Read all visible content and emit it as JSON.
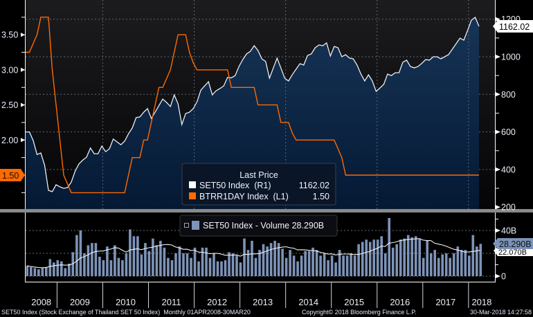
{
  "chart_data": [
    {
      "type": "line",
      "panel": "price",
      "x_start": "2008-04",
      "x_end": "2018-03",
      "frequency": "monthly",
      "legend_title": "Last Price",
      "legend_placement": "bottom-center",
      "grid": true,
      "series": [
        {
          "name": "SET50 Index  (R1)",
          "axis": "right",
          "style": "area",
          "color": "#ffffff",
          "fill": "#0d2a4d",
          "last_value_label": "1162.02",
          "values": [
            600,
            600,
            554,
            480,
            488,
            422,
            289,
            282,
            319,
            308,
            300,
            304,
            333,
            392,
            430,
            450,
            466,
            514,
            484,
            484,
            525,
            495,
            510,
            562,
            547,
            532,
            551,
            590,
            621,
            676,
            680,
            705,
            724,
            672,
            705,
            740,
            775,
            757,
            735,
            797,
            750,
            639,
            698,
            705,
            724,
            761,
            823,
            845,
            867,
            797,
            819,
            831,
            845,
            890,
            888,
            900,
            948,
            985,
            1015,
            1029,
            1059,
            1033,
            989,
            975,
            886,
            940,
            993,
            940,
            886,
            871,
            905,
            934,
            963,
            956,
            1007,
            1015,
            1048,
            1063,
            1059,
            1074,
            1004,
            1055,
            1048,
            1000,
            1011,
            993,
            989,
            956,
            908,
            871,
            904,
            871,
            816,
            834,
            853,
            908,
            900,
            915,
            915,
            971,
            982,
            948,
            941,
            948,
            965,
            985,
            982,
            1000,
            1000,
            989,
            1000,
            1011,
            1040,
            1070,
            1099,
            1088,
            1140,
            1195,
            1210,
            1162.02
          ]
        },
        {
          "name": "BTRR1DAY Index  (L1)",
          "axis": "left",
          "style": "line",
          "color": "#ff6a00",
          "last_value_label": "1.50",
          "values": [
            3.25,
            3.25,
            3.375,
            3.5,
            3.75,
            3.75,
            3.75,
            3.0,
            2.5,
            2.0,
            1.5,
            1.375,
            1.25,
            1.25,
            1.25,
            1.25,
            1.25,
            1.25,
            1.25,
            1.25,
            1.25,
            1.25,
            1.25,
            1.25,
            1.25,
            1.25,
            1.25,
            1.5,
            1.75,
            1.75,
            1.75,
            2.0,
            2.0,
            2.25,
            2.5,
            2.75,
            2.75,
            2.875,
            3.0,
            3.25,
            3.5,
            3.5,
            3.5,
            3.25,
            3.1,
            3.0,
            3.0,
            3.0,
            3.0,
            3.0,
            3.0,
            3.0,
            3.0,
            3.0,
            2.75,
            2.75,
            2.75,
            2.75,
            2.75,
            2.75,
            2.75,
            2.5,
            2.5,
            2.5,
            2.5,
            2.5,
            2.5,
            2.25,
            2.25,
            2.25,
            2.1,
            2.0,
            2.0,
            2.0,
            2.0,
            2.0,
            2.0,
            2.0,
            2.0,
            2.0,
            2.0,
            2.0,
            1.875,
            1.75,
            1.5,
            1.5,
            1.5,
            1.5,
            1.5,
            1.5,
            1.5,
            1.5,
            1.5,
            1.5,
            1.5,
            1.5,
            1.5,
            1.5,
            1.5,
            1.5,
            1.5,
            1.5,
            1.5,
            1.5,
            1.5,
            1.5,
            1.5,
            1.5,
            1.5,
            1.5,
            1.5,
            1.5,
            1.5,
            1.5,
            1.5,
            1.5,
            1.5,
            1.5,
            1.5,
            1.5
          ]
        }
      ],
      "left_axis": {
        "ylim": [
          1.0,
          4.0
        ],
        "tick_labels": [
          "3.50",
          "3.00",
          "2.50",
          "2.00"
        ],
        "ticks": [
          3.5,
          3.0,
          2.5,
          2.0
        ]
      },
      "right_axis": {
        "ylim": [
          190,
          1300
        ],
        "tick_labels": [
          "1200",
          "1000",
          "800",
          "600",
          "400",
          "200"
        ],
        "ticks": [
          1200,
          1000,
          800,
          600,
          400,
          200
        ]
      }
    },
    {
      "type": "bar",
      "panel": "volume",
      "legend_placement": "top-center",
      "grid": true,
      "series": [
        {
          "name": "SET50 Index - Volume",
          "legend_value": "28.290B",
          "color": "#7d93b8",
          "unit": "B",
          "values": [
            9,
            8,
            7,
            6,
            7,
            8,
            15,
            12,
            14,
            13,
            7,
            11,
            21,
            36,
            40,
            20,
            27,
            29,
            29,
            17,
            14,
            26,
            14,
            27,
            16,
            14,
            20,
            41,
            35,
            35,
            19,
            29,
            22,
            33,
            27,
            31,
            25,
            16,
            14,
            20,
            26,
            20,
            20,
            16,
            25,
            13,
            25,
            25,
            16,
            20,
            13,
            13,
            14,
            21,
            20,
            18,
            12,
            33,
            23,
            31,
            16,
            23,
            28,
            26,
            29,
            31,
            29,
            24,
            16,
            23,
            18,
            13,
            18,
            22,
            22,
            25,
            23,
            18,
            20,
            14,
            18,
            12,
            23,
            18,
            18,
            20,
            18,
            28,
            30,
            32,
            30,
            32,
            32,
            35,
            20,
            51,
            25,
            28,
            32,
            33,
            36,
            34,
            35,
            33,
            16,
            31,
            20,
            23,
            16,
            19,
            20,
            16,
            20,
            26,
            23,
            23,
            18,
            36,
            26,
            28.29
          ]
        },
        {
          "name": "moving average",
          "style": "line",
          "color": "#ffffff",
          "last_value_label": "22.070B"
        }
      ],
      "right_axis": {
        "ylim": [
          -2,
          60
        ],
        "tick_labels": [
          "40B",
          "0"
        ],
        "ticks": [
          40,
          0
        ]
      }
    }
  ],
  "x_axis": {
    "year_labels": [
      "2008",
      "2009",
      "2010",
      "2011",
      "2012",
      "2013",
      "2014",
      "2015",
      "2016",
      "2017",
      "2018"
    ]
  },
  "footer": {
    "description": "SET50 Index (Stock Exchange of Thailand SET 50 Index)  Monthly 01APR2008-30MAR20",
    "copyright": "Copyright© 2018 Bloomberg Finance L.P.",
    "timestamp": "30-Mar-2018 14:27:58"
  },
  "colors": {
    "background": "#000000",
    "plot_bg_top": "#1c1c1f",
    "area_top": "#173456",
    "area_bottom": "#041934",
    "orange": "#ff6a00",
    "volume_bar": "#7d93b8",
    "separator": "#8a8a8a"
  }
}
